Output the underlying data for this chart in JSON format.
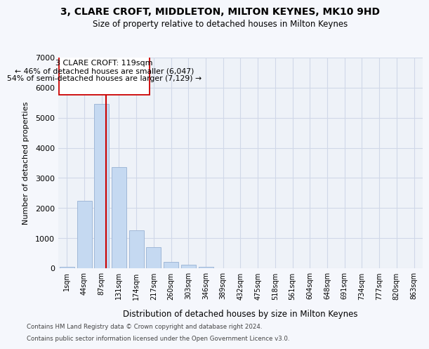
{
  "title": "3, CLARE CROFT, MIDDLETON, MILTON KEYNES, MK10 9HD",
  "subtitle": "Size of property relative to detached houses in Milton Keynes",
  "xlabel": "Distribution of detached houses by size in Milton Keynes",
  "ylabel": "Number of detached properties",
  "footer_line1": "Contains HM Land Registry data © Crown copyright and database right 2024.",
  "footer_line2": "Contains public sector information licensed under the Open Government Licence v3.0.",
  "bin_labels": [
    "1sqm",
    "44sqm",
    "87sqm",
    "131sqm",
    "174sqm",
    "217sqm",
    "260sqm",
    "303sqm",
    "346sqm",
    "389sqm",
    "432sqm",
    "475sqm",
    "518sqm",
    "561sqm",
    "604sqm",
    "648sqm",
    "691sqm",
    "734sqm",
    "777sqm",
    "820sqm",
    "863sqm"
  ],
  "bar_values": [
    50,
    2250,
    5450,
    3350,
    1250,
    700,
    200,
    120,
    55,
    10,
    5,
    0,
    0,
    0,
    0,
    0,
    0,
    0,
    0,
    0,
    0
  ],
  "bar_color": "#c5d9f1",
  "bar_edge_color": "#a0b8d8",
  "grid_color": "#d0d8e8",
  "property_size": 119,
  "property_label": "3 CLARE CROFT: 119sqm",
  "annotation_line1": "← 46% of detached houses are smaller (6,047)",
  "annotation_line2": "54% of semi-detached houses are larger (7,129) →",
  "vline_color": "#cc0000",
  "ylim": [
    0,
    7000
  ],
  "yticks": [
    0,
    1000,
    2000,
    3000,
    4000,
    5000,
    6000,
    7000
  ],
  "bg_color": "#eef2f8",
  "fig_bg_color": "#f5f7fc"
}
